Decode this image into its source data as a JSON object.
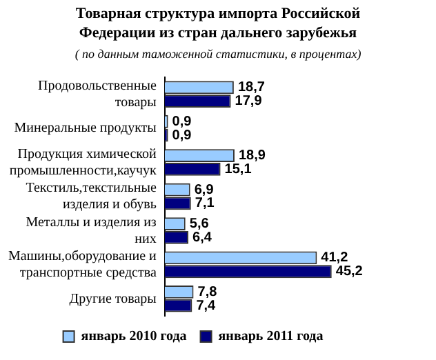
{
  "chart_data": {
    "type": "bar",
    "orientation": "horizontal",
    "title": "Товарная структура импорта Российской Федерации из стран дальнего зарубежья",
    "subtitle": "( по данным таможенной статистики, в процентах)",
    "categories": [
      "Продовольственные товары",
      "Минеральные продукты",
      "Продукция химической промышленности,каучук",
      "Текстиль,текстильные изделия и обувь",
      "Металлы и изделия из них",
      "Машины,оборудование и транспортные средства",
      "Другие товары"
    ],
    "series": [
      {
        "name": "январь 2010 года",
        "color": "#99ccff",
        "values": [
          18.7,
          0.9,
          18.9,
          6.9,
          5.6,
          41.2,
          7.8
        ],
        "value_labels": [
          "18,7",
          "0,9",
          "18,9",
          "6,9",
          "5,6",
          "41,2",
          "7,8"
        ]
      },
      {
        "name": "январь 2011 года",
        "color": "#000080",
        "values": [
          17.9,
          0.9,
          15.1,
          7.1,
          6.4,
          45.2,
          7.4
        ],
        "value_labels": [
          "17,9",
          "0,9",
          "15,1",
          "7,1",
          "6,4",
          "45,2",
          "7,4"
        ]
      }
    ],
    "legend": "bottom",
    "tick_labels": "y"
  }
}
